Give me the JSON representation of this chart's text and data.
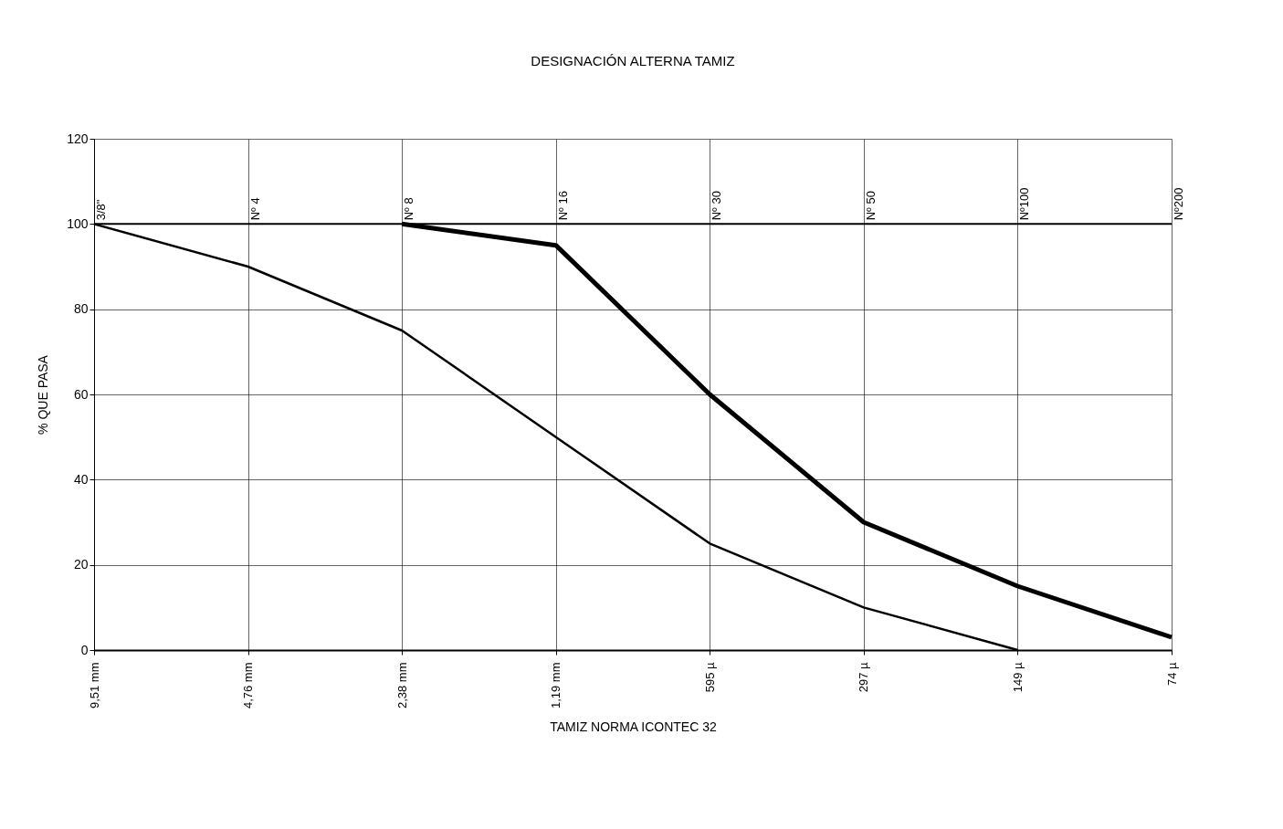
{
  "chart_data": {
    "type": "line",
    "title": "DESIGNACIÓN ALTERNA TAMIZ",
    "xlabel": "TAMIZ NORMA ICONTEC 32",
    "ylabel": "% QUE PASA",
    "categories": [
      "9,51 mm",
      "4,76 mm",
      "2,38 mm",
      "1,19 mm",
      "595 µ",
      "297 µ",
      "149 µ",
      "74 µ"
    ],
    "series": [
      {
        "color": "#000000",
        "values": [
          100,
          90,
          75,
          50,
          25,
          10,
          0,
          null
        ]
      },
      {
        "color": "#000000",
        "values": [
          null,
          null,
          100,
          95,
          60,
          30,
          15,
          3
        ]
      }
    ],
    "ylim": [
      0,
      120
    ],
    "yticks": [
      0,
      20,
      40,
      60,
      80,
      100,
      120
    ],
    "grid": true,
    "marker": "none",
    "line_style": "solid",
    "ref_lines": [
      {
        "axis": "y",
        "value": 100,
        "color": "#000000"
      }
    ],
    "annotations": [
      {
        "text": "3/8\"",
        "x": "9,51 mm",
        "y": 100
      },
      {
        "text": "Nº 4",
        "x": "4,76 mm",
        "y": 100
      },
      {
        "text": "Nº 8",
        "x": "2,38 mm",
        "y": 100
      },
      {
        "text": "Nº 16",
        "x": "1,19 mm",
        "y": 100
      },
      {
        "text": "Nº 30",
        "x": "595 µ",
        "y": 100
      },
      {
        "text": "Nº 50",
        "x": "297 µ",
        "y": 100
      },
      {
        "text": "Nº100",
        "x": "149 µ",
        "y": 100
      },
      {
        "text": "Nº200",
        "x": "74 µ",
        "y": 100
      }
    ]
  }
}
